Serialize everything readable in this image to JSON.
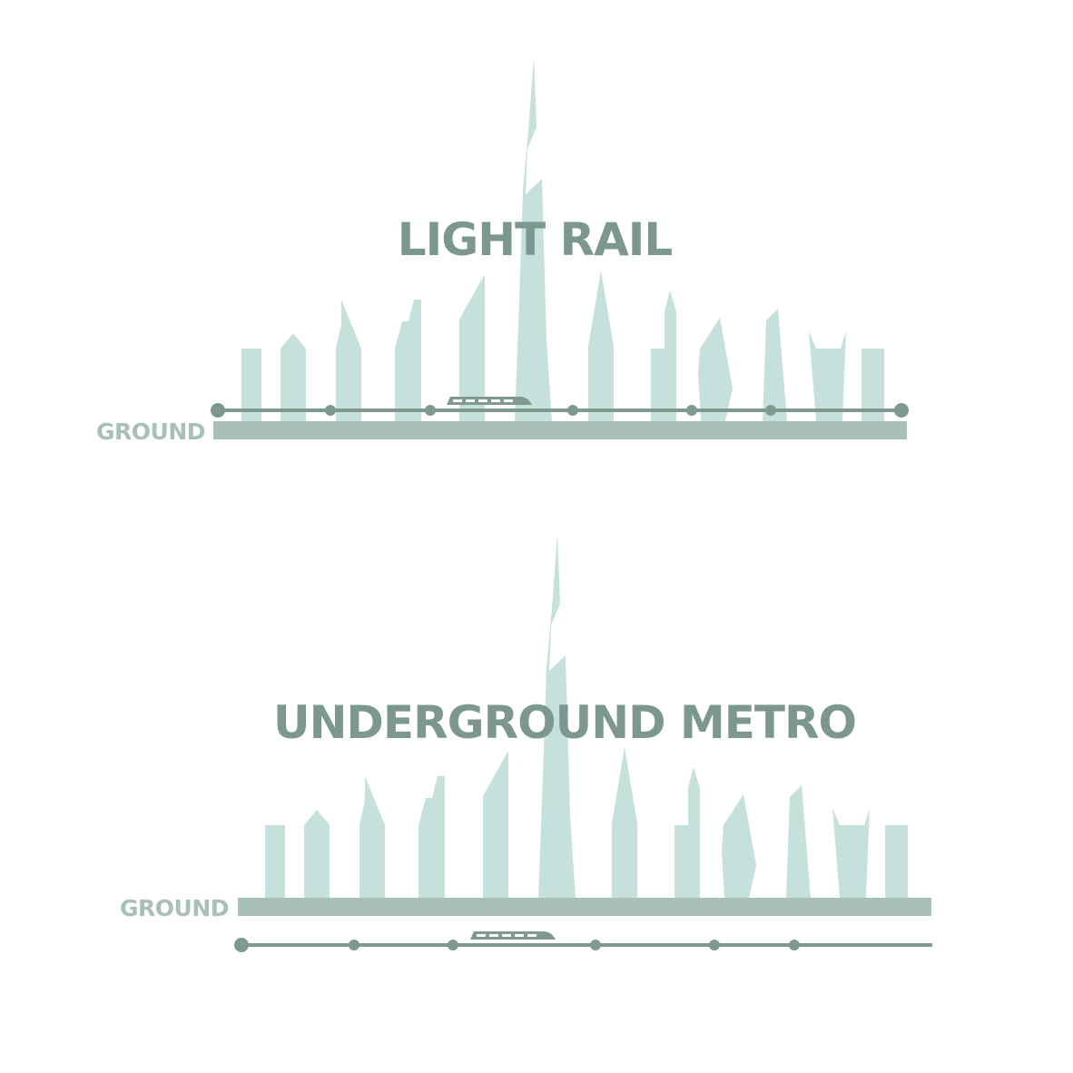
{
  "colors": {
    "building": "#c6e1dc",
    "rail": "#80998f",
    "title": "#7c9690",
    "ground": "#a8c0b8",
    "ground_label": "#a8c0b8",
    "background": "#ffffff"
  },
  "panels": [
    {
      "title": "LIGHT RAIL",
      "ground_label": "GROUND",
      "rail_position": "above-ground",
      "station_count": 8,
      "icons": [
        "skyline-icon",
        "train-icon"
      ]
    },
    {
      "title": "UNDERGROUND METRO",
      "ground_label": "GROUND",
      "rail_position": "below-ground",
      "station_count": 7,
      "icons": [
        "skyline-icon",
        "train-icon"
      ]
    }
  ]
}
